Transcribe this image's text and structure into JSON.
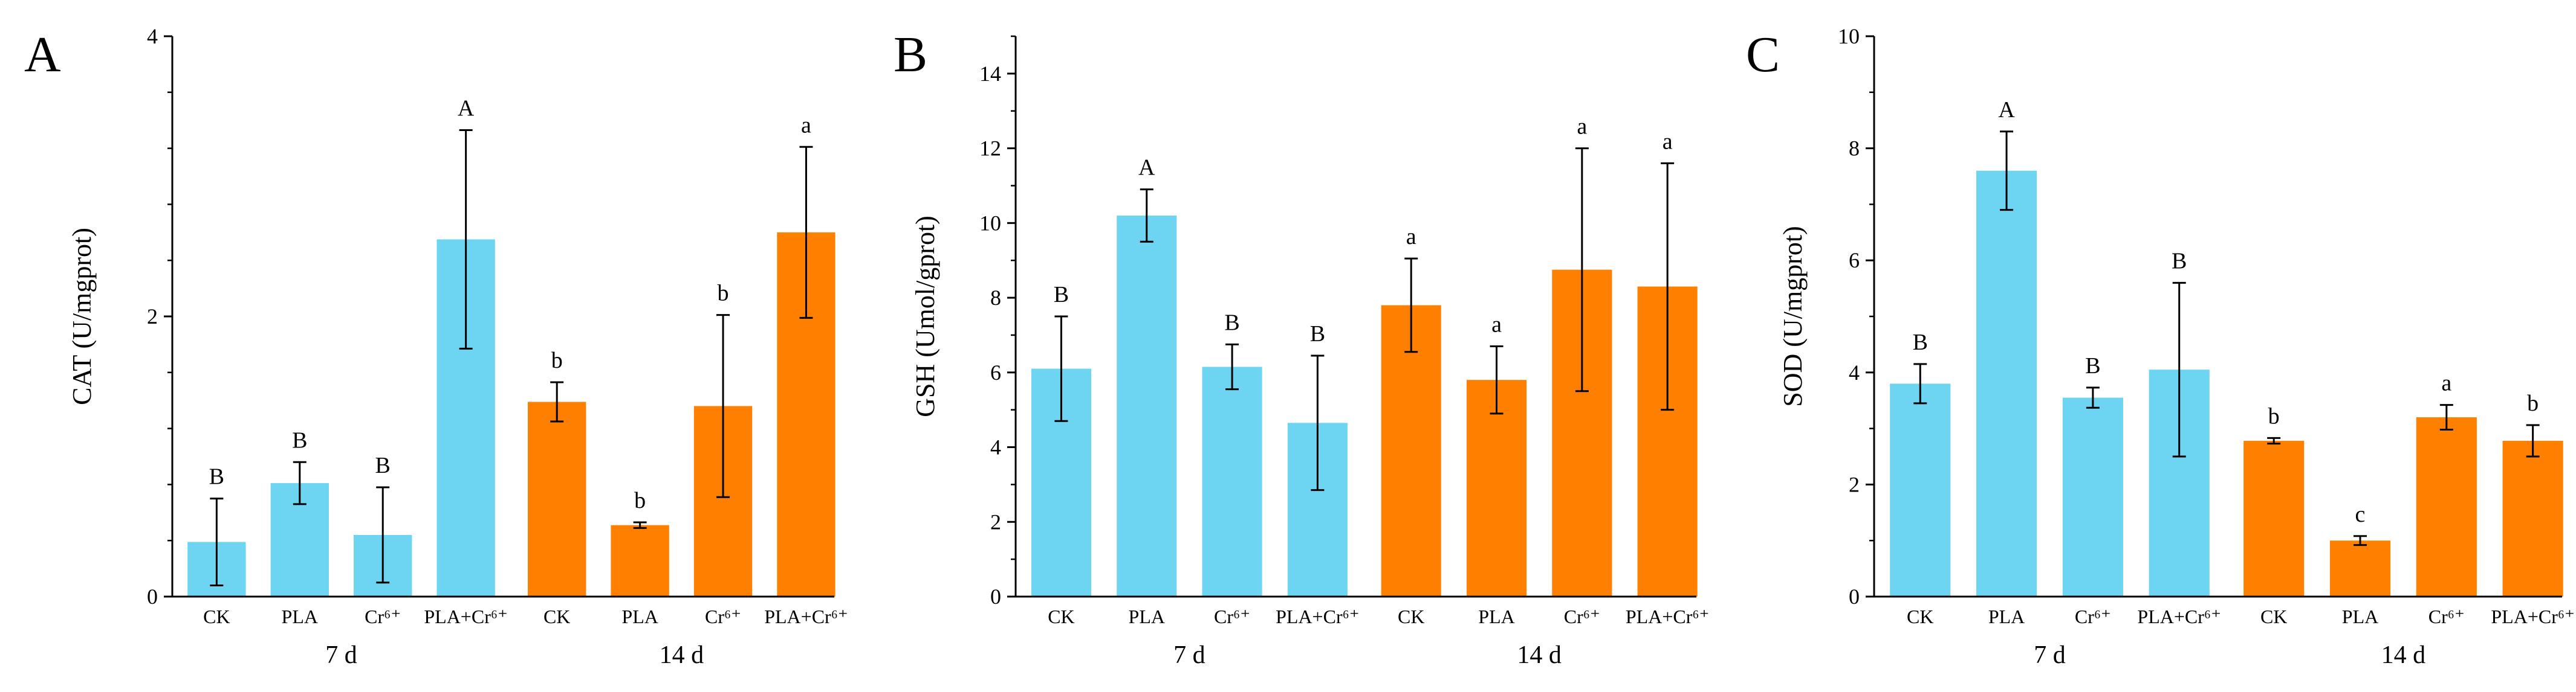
{
  "chart_data": [
    {
      "type": "bar",
      "panel": "A",
      "ylabel": "CAT (U/mgprot)",
      "ylim": [
        0,
        4
      ],
      "yticks": [
        0,
        2,
        4
      ],
      "minor_ticks": 4,
      "groups": [
        {
          "label": "7 d",
          "color": "#6DD5F2",
          "categories": [
            "CK",
            "PLA",
            "Cr⁶⁺",
            "PLA+Cr⁶⁺"
          ],
          "values": [
            0.39,
            0.81,
            0.44,
            2.55
          ],
          "errors": [
            0.31,
            0.15,
            0.34,
            0.78
          ],
          "letters": [
            "B",
            "B",
            "B",
            "A"
          ]
        },
        {
          "label": "14 d",
          "color": "#FF8000",
          "categories": [
            "CK",
            "PLA",
            "Cr⁶⁺",
            "PLA+Cr⁶⁺"
          ],
          "values": [
            1.39,
            0.51,
            1.36,
            2.6
          ],
          "errors": [
            0.14,
            0.02,
            0.65,
            0.61
          ],
          "letters": [
            "b",
            "b",
            "b",
            "a"
          ]
        }
      ]
    },
    {
      "type": "bar",
      "panel": "B",
      "ylabel": "GSH (Umol/gprot)",
      "ylim": [
        0,
        15
      ],
      "yticks": [
        0,
        2,
        4,
        6,
        8,
        10,
        12,
        14
      ],
      "minor_ticks": 1,
      "groups": [
        {
          "label": "7 d",
          "color": "#6DD5F2",
          "categories": [
            "CK",
            "PLA",
            "Cr⁶⁺",
            "PLA+Cr⁶⁺"
          ],
          "values": [
            6.1,
            10.2,
            6.15,
            4.65
          ],
          "errors": [
            1.4,
            0.7,
            0.6,
            1.8
          ],
          "letters": [
            "B",
            "A",
            "B",
            "B"
          ]
        },
        {
          "label": "14 d",
          "color": "#FF8000",
          "categories": [
            "CK",
            "PLA",
            "Cr⁶⁺",
            "PLA+Cr⁶⁺"
          ],
          "values": [
            7.8,
            5.8,
            8.75,
            8.3
          ],
          "errors": [
            1.25,
            0.9,
            3.25,
            3.3
          ],
          "letters": [
            "a",
            "a",
            "a",
            "a"
          ]
        }
      ]
    },
    {
      "type": "bar",
      "panel": "C",
      "ylabel": "SOD (U/mgprot)",
      "ylim": [
        0,
        10
      ],
      "yticks": [
        0,
        2,
        4,
        6,
        8,
        10
      ],
      "minor_ticks": 1,
      "groups": [
        {
          "label": "7 d",
          "color": "#6DD5F2",
          "categories": [
            "CK",
            "PLA",
            "Cr⁶⁺",
            "PLA+Cr⁶⁺"
          ],
          "values": [
            3.8,
            7.6,
            3.55,
            4.05
          ],
          "errors": [
            0.35,
            0.7,
            0.18,
            1.55
          ],
          "letters": [
            "B",
            "A",
            "B",
            "B"
          ]
        },
        {
          "label": "14 d",
          "color": "#FF8000",
          "categories": [
            "CK",
            "PLA",
            "Cr⁶⁺",
            "PLA+Cr⁶⁺"
          ],
          "values": [
            2.78,
            1.0,
            3.2,
            2.78
          ],
          "errors": [
            0.05,
            0.08,
            0.22,
            0.28
          ],
          "letters": [
            "b",
            "c",
            "a",
            "b"
          ]
        }
      ]
    }
  ]
}
